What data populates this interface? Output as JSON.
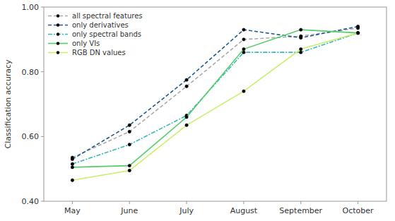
{
  "chart_data": {
    "type": "line",
    "categories": [
      "May",
      "June",
      "July",
      "August",
      "September",
      "October"
    ],
    "series": [
      {
        "name": "all spectral features",
        "color": "#aaaaaa",
        "line_style": "dashed",
        "marker": "circle",
        "values": [
          0.535,
          0.615,
          0.755,
          0.9,
          0.91,
          0.935
        ]
      },
      {
        "name": "only derivatives",
        "color": "#1e5a8a",
        "line_style": "dashed",
        "marker": "circle",
        "values": [
          0.53,
          0.635,
          0.775,
          0.93,
          0.905,
          0.94
        ]
      },
      {
        "name": "only spectral bands",
        "color": "#3ab8c0",
        "line_style": "dashdot",
        "marker": "circle",
        "values": [
          0.515,
          0.575,
          0.665,
          0.86,
          0.86,
          0.92
        ]
      },
      {
        "name": "only VIs",
        "color": "#55cc6a",
        "line_style": "solid",
        "marker": "circle",
        "values": [
          0.505,
          0.51,
          0.66,
          0.87,
          0.93,
          0.92
        ]
      },
      {
        "name": "RGB DN values",
        "color": "#c8f06c",
        "line_style": "solid",
        "marker": "circle",
        "values": [
          0.465,
          0.495,
          0.635,
          0.74,
          0.87,
          0.92
        ]
      }
    ],
    "ylabel": "Classification accuracy",
    "ylim": [
      0.4,
      1.0
    ],
    "yticks": [
      {
        "value": 0.4,
        "label": "0.40"
      },
      {
        "value": 0.6,
        "label": "0.60"
      },
      {
        "value": 0.8,
        "label": "0.80"
      },
      {
        "value": 1.0,
        "label": "1.00"
      }
    ],
    "grid": false,
    "legend": "upper left"
  }
}
